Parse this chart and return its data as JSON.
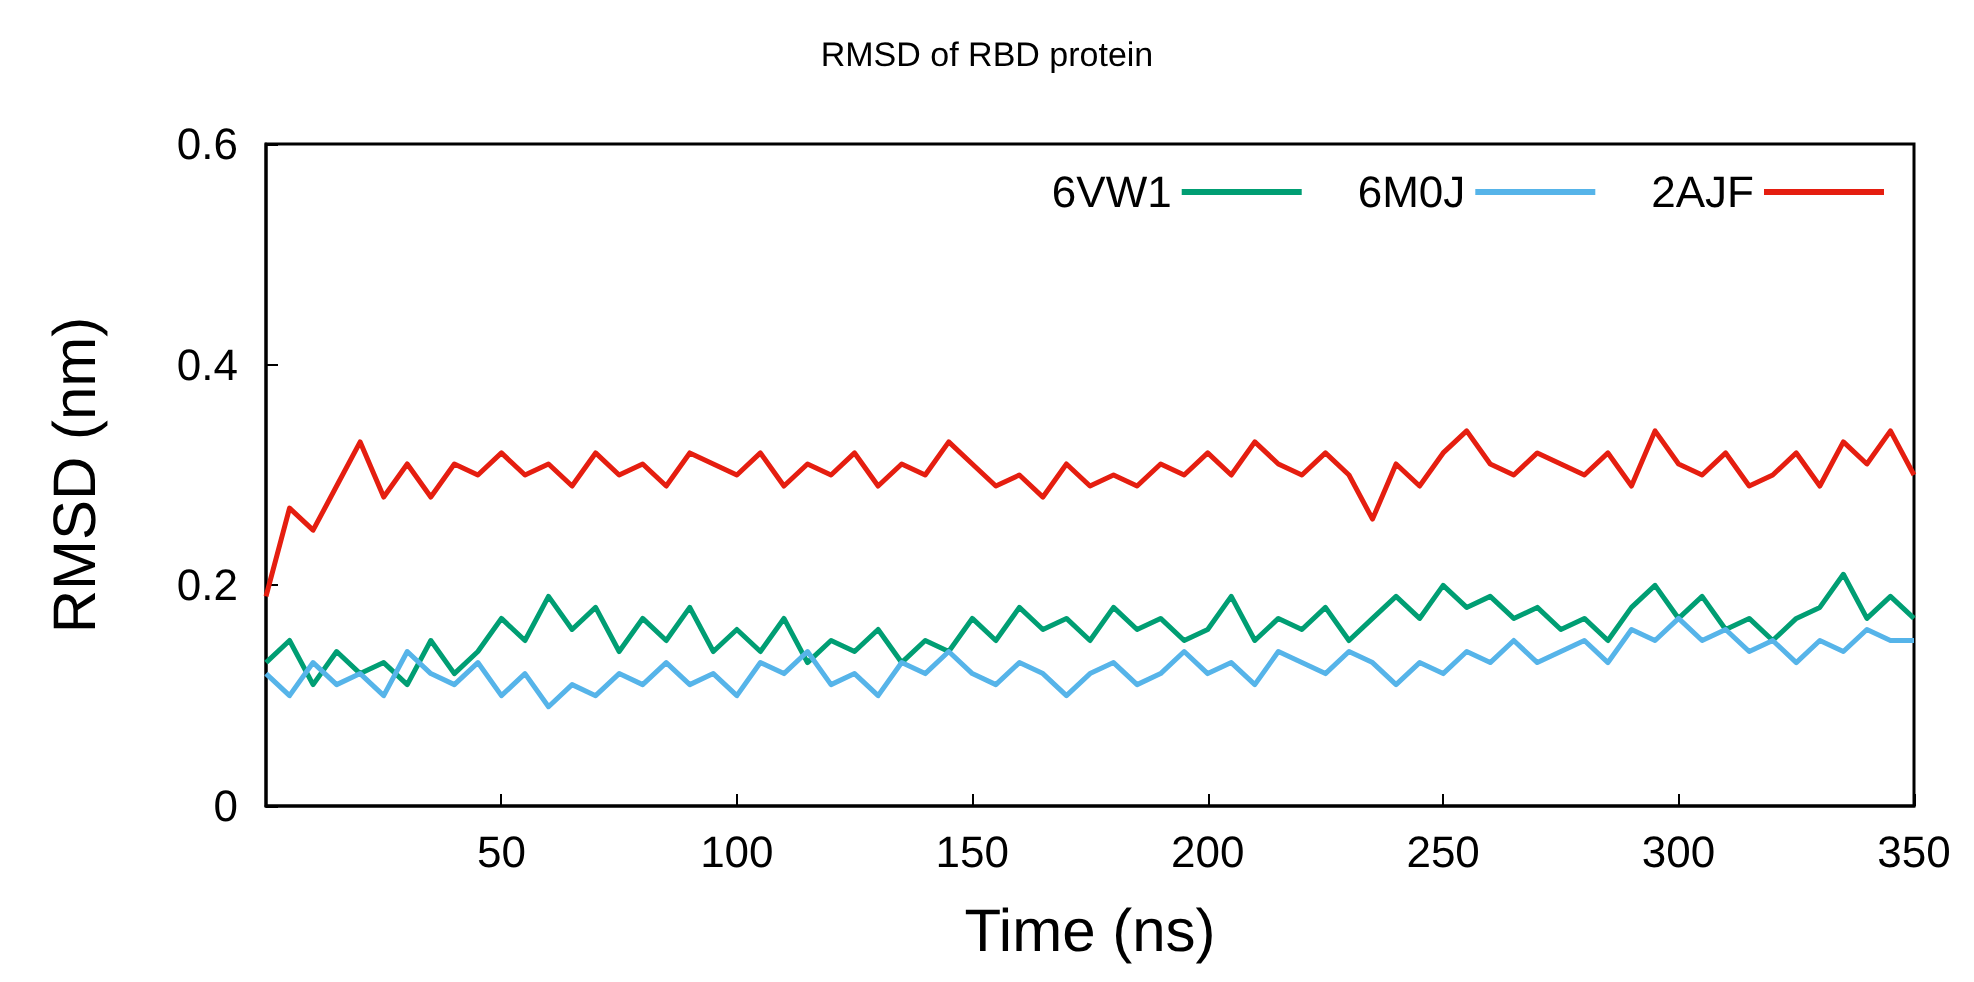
{
  "chart_data": {
    "type": "line",
    "title": "RMSD of RBD protein",
    "xlabel": "Time (ns)",
    "ylabel": "RMSD (nm)",
    "x": [
      0,
      5,
      10,
      15,
      20,
      25,
      30,
      35,
      40,
      45,
      50,
      55,
      60,
      65,
      70,
      75,
      80,
      85,
      90,
      95,
      100,
      105,
      110,
      115,
      120,
      125,
      130,
      135,
      140,
      145,
      150,
      155,
      160,
      165,
      170,
      175,
      180,
      185,
      190,
      195,
      200,
      205,
      210,
      215,
      220,
      225,
      230,
      235,
      240,
      245,
      250,
      255,
      260,
      265,
      270,
      275,
      280,
      285,
      290,
      295,
      300,
      305,
      310,
      315,
      320,
      325,
      330,
      335,
      340,
      345,
      350
    ],
    "series": [
      {
        "name": "6VW1",
        "color": "#009e73",
        "values": [
          0.13,
          0.15,
          0.11,
          0.14,
          0.12,
          0.13,
          0.11,
          0.15,
          0.12,
          0.14,
          0.17,
          0.15,
          0.19,
          0.16,
          0.18,
          0.14,
          0.17,
          0.15,
          0.18,
          0.14,
          0.16,
          0.14,
          0.17,
          0.13,
          0.15,
          0.14,
          0.16,
          0.13,
          0.15,
          0.14,
          0.17,
          0.15,
          0.18,
          0.16,
          0.17,
          0.15,
          0.18,
          0.16,
          0.17,
          0.15,
          0.16,
          0.19,
          0.15,
          0.17,
          0.16,
          0.18,
          0.15,
          0.17,
          0.19,
          0.17,
          0.2,
          0.18,
          0.19,
          0.17,
          0.18,
          0.16,
          0.17,
          0.15,
          0.18,
          0.2,
          0.17,
          0.19,
          0.16,
          0.17,
          0.15,
          0.17,
          0.18,
          0.21,
          0.17,
          0.19,
          0.17
        ]
      },
      {
        "name": "6M0J",
        "color": "#56b4e9",
        "values": [
          0.12,
          0.1,
          0.13,
          0.11,
          0.12,
          0.1,
          0.14,
          0.12,
          0.11,
          0.13,
          0.1,
          0.12,
          0.09,
          0.11,
          0.1,
          0.12,
          0.11,
          0.13,
          0.11,
          0.12,
          0.1,
          0.13,
          0.12,
          0.14,
          0.11,
          0.12,
          0.1,
          0.13,
          0.12,
          0.14,
          0.12,
          0.11,
          0.13,
          0.12,
          0.1,
          0.12,
          0.13,
          0.11,
          0.12,
          0.14,
          0.12,
          0.13,
          0.11,
          0.14,
          0.13,
          0.12,
          0.14,
          0.13,
          0.11,
          0.13,
          0.12,
          0.14,
          0.13,
          0.15,
          0.13,
          0.14,
          0.15,
          0.13,
          0.16,
          0.15,
          0.17,
          0.15,
          0.16,
          0.14,
          0.15,
          0.13,
          0.15,
          0.14,
          0.16,
          0.15,
          0.15
        ]
      },
      {
        "name": "2AJF",
        "color": "#e51e10",
        "values": [
          0.19,
          0.27,
          0.25,
          0.29,
          0.33,
          0.28,
          0.31,
          0.28,
          0.31,
          0.3,
          0.32,
          0.3,
          0.31,
          0.29,
          0.32,
          0.3,
          0.31,
          0.29,
          0.32,
          0.31,
          0.3,
          0.32,
          0.29,
          0.31,
          0.3,
          0.32,
          0.29,
          0.31,
          0.3,
          0.33,
          0.31,
          0.29,
          0.3,
          0.28,
          0.31,
          0.29,
          0.3,
          0.29,
          0.31,
          0.3,
          0.32,
          0.3,
          0.33,
          0.31,
          0.3,
          0.32,
          0.3,
          0.26,
          0.31,
          0.29,
          0.32,
          0.34,
          0.31,
          0.3,
          0.32,
          0.31,
          0.3,
          0.32,
          0.29,
          0.34,
          0.31,
          0.3,
          0.32,
          0.29,
          0.3,
          0.32,
          0.29,
          0.33,
          0.31,
          0.34,
          0.3
        ]
      }
    ],
    "xlim": [
      0,
      350
    ],
    "xticks": [
      50,
      100,
      150,
      200,
      250,
      300,
      350
    ],
    "ylim": [
      0,
      0.6
    ],
    "yticks": [
      0,
      0.2,
      0.4,
      0.6
    ],
    "grid": false,
    "legend": "top right",
    "marker": "none",
    "line_style": "solid"
  }
}
